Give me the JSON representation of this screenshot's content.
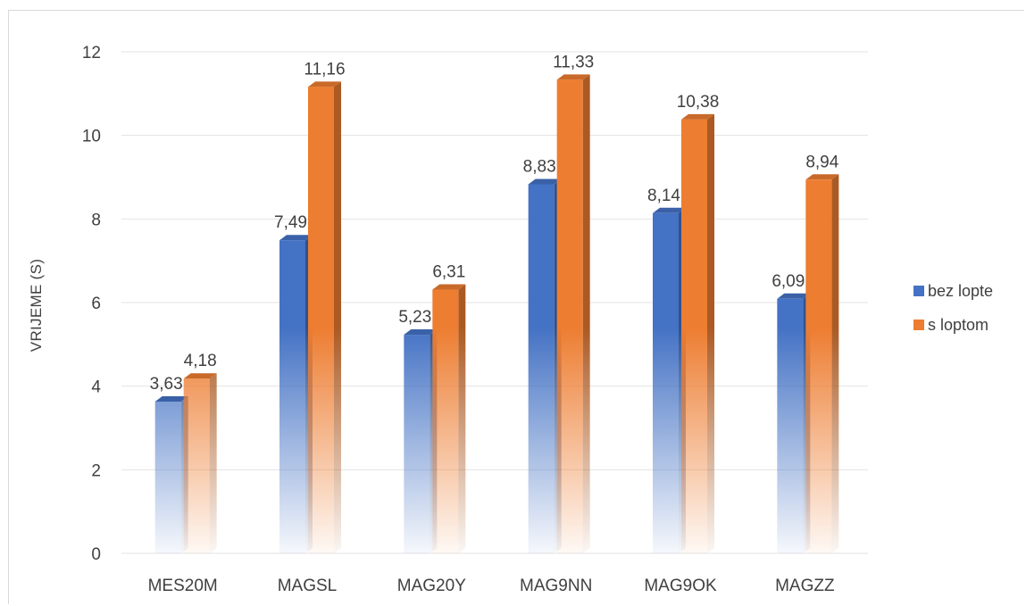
{
  "chart_data": {
    "type": "bar",
    "title": "",
    "xlabel": "",
    "ylabel": "VRIJEME (S)",
    "ylim": [
      0,
      12
    ],
    "yticks": [
      0,
      2,
      4,
      6,
      8,
      10,
      12
    ],
    "grid": true,
    "legend_position": "right",
    "categories": [
      "MES20M",
      "MAGSL",
      "MAG20Y",
      "MAG9NN",
      "MAG9OK",
      "MAGZZ"
    ],
    "series": [
      {
        "name": "bez lopte",
        "color": "#4472c4",
        "values": [
          3.63,
          7.49,
          5.23,
          8.83,
          8.14,
          6.09
        ],
        "labels": [
          "3,63",
          "7,49",
          "5,23",
          "8,83",
          "8,14",
          "6,09"
        ]
      },
      {
        "name": "s loptom",
        "color": "#ed7d31",
        "values": [
          4.18,
          11.16,
          6.31,
          11.33,
          10.38,
          8.94
        ],
        "labels": [
          "4,18",
          "11,16",
          "6,31",
          "11,33",
          "10,38",
          "8,94"
        ]
      }
    ]
  }
}
